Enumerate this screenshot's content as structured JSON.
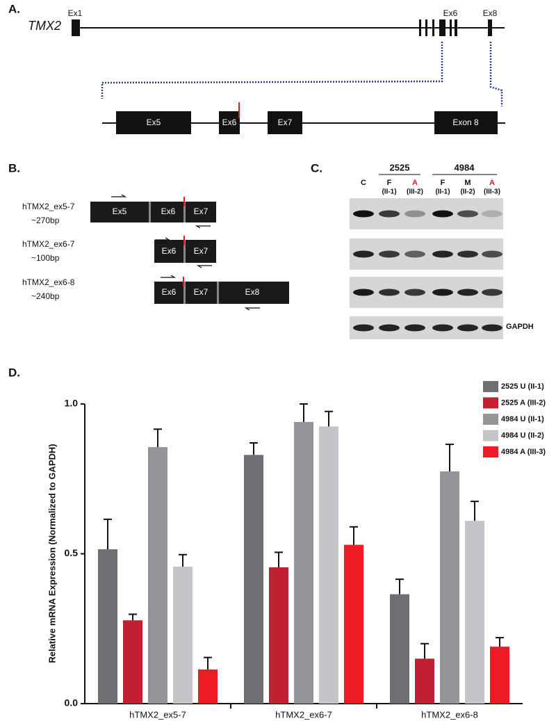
{
  "panels": {
    "a": {
      "label": "A.",
      "gene": "TMX2",
      "exon_top": [
        "Ex1",
        "Ex6",
        "Ex8"
      ],
      "exon_zoom": [
        "Ex5",
        "Ex6",
        "Ex7",
        "Exon 8"
      ]
    },
    "b": {
      "label": "B.",
      "constructs": [
        {
          "name": "hTMX2_ex5-7",
          "size": "~270bp",
          "exons": [
            "Ex5",
            "Ex6",
            "Ex7"
          ]
        },
        {
          "name": "hTMX2_ex6-7",
          "size": "~100bp",
          "exons": [
            "Ex6",
            "Ex7"
          ]
        },
        {
          "name": "hTMX2_ex6-8",
          "size": "~240bp",
          "exons": [
            "Ex6",
            "Ex7",
            "Ex8"
          ]
        }
      ]
    },
    "c": {
      "label": "C.",
      "families": [
        "2525",
        "4984"
      ],
      "lanes": [
        {
          "top": "C"
        },
        {
          "top": "F",
          "bottom": "(II-1)"
        },
        {
          "top": "A",
          "bottom": "(III-2)"
        },
        {
          "top": "F",
          "bottom": "(II-1)"
        },
        {
          "top": "M",
          "bottom": "(II-2)"
        },
        {
          "top": "A",
          "bottom": "(III-3)"
        }
      ],
      "control": "GAPDH"
    },
    "d": {
      "label": "D."
    }
  },
  "chart_data": {
    "type": "bar",
    "ylabel": "Relative mRNA Expression (Normalized to GAPDH)",
    "categories": [
      "hTMX2_ex5-7",
      "hTMX2_ex6-7",
      "hTMX2_ex6-8"
    ],
    "series": [
      {
        "name": "2525 U (II-1)",
        "color": "#6d6e72",
        "values": [
          0.515,
          0.83,
          0.365
        ],
        "errors": [
          0.1,
          0.04,
          0.05
        ]
      },
      {
        "name": "2525 A (III-2)",
        "color": "#c0202f",
        "values": [
          0.278,
          0.455,
          0.15
        ],
        "errors": [
          0.02,
          0.05,
          0.05
        ]
      },
      {
        "name": "4984 U (II-1)",
        "color": "#939598",
        "values": [
          0.856,
          0.94,
          0.775
        ],
        "errors": [
          0.06,
          0.06,
          0.09
        ]
      },
      {
        "name": "4984 U (II-2)",
        "color": "#c4c5c8",
        "values": [
          0.457,
          0.925,
          0.61
        ],
        "errors": [
          0.04,
          0.05,
          0.065
        ]
      },
      {
        "name": "4984 A (III-3)",
        "color": "#ed1c24",
        "values": [
          0.114,
          0.53,
          0.19
        ],
        "errors": [
          0.04,
          0.06,
          0.03
        ]
      }
    ],
    "ylim": [
      0,
      1.0
    ],
    "yticks": [
      {
        "value": 0,
        "label": "0.0"
      },
      0.5,
      {
        "value": 1.0,
        "label": "1.0"
      }
    ],
    "legend": "upper right"
  }
}
